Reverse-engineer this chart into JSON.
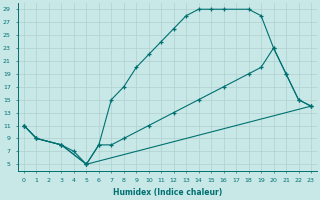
{
  "xlabel": "Humidex (Indice chaleur)",
  "bg_color": "#c8e8e8",
  "line_color": "#007070",
  "grid_color": "#b0d0d0",
  "xlim": [
    -0.5,
    23.5
  ],
  "ylim": [
    4,
    30
  ],
  "xticks": [
    0,
    1,
    2,
    3,
    4,
    5,
    6,
    7,
    8,
    9,
    10,
    11,
    12,
    13,
    14,
    15,
    16,
    17,
    18,
    19,
    20,
    21,
    22,
    23
  ],
  "yticks": [
    5,
    7,
    9,
    11,
    13,
    15,
    17,
    19,
    21,
    23,
    25,
    27,
    29
  ],
  "curve1_x": [
    0,
    1,
    3,
    5,
    6,
    7,
    8,
    9,
    10,
    11,
    12,
    13,
    14,
    15,
    16,
    18,
    19,
    20,
    21,
    22,
    23
  ],
  "curve1_y": [
    11,
    9,
    8,
    5,
    8,
    15,
    17,
    20,
    22,
    24,
    26,
    28,
    29,
    29,
    29,
    29,
    28,
    23,
    19,
    15,
    14
  ],
  "curve2_x": [
    0,
    1,
    3,
    4,
    5,
    6,
    7,
    8,
    10,
    12,
    14,
    16,
    18,
    19,
    20,
    21,
    22,
    23
  ],
  "curve2_y": [
    11,
    9,
    8,
    7,
    5,
    8,
    8,
    9,
    11,
    13,
    15,
    17,
    19,
    20,
    23,
    19,
    15,
    14
  ],
  "curve3_x": [
    0,
    1,
    3,
    5,
    23
  ],
  "curve3_y": [
    11,
    9,
    8,
    5,
    14
  ]
}
